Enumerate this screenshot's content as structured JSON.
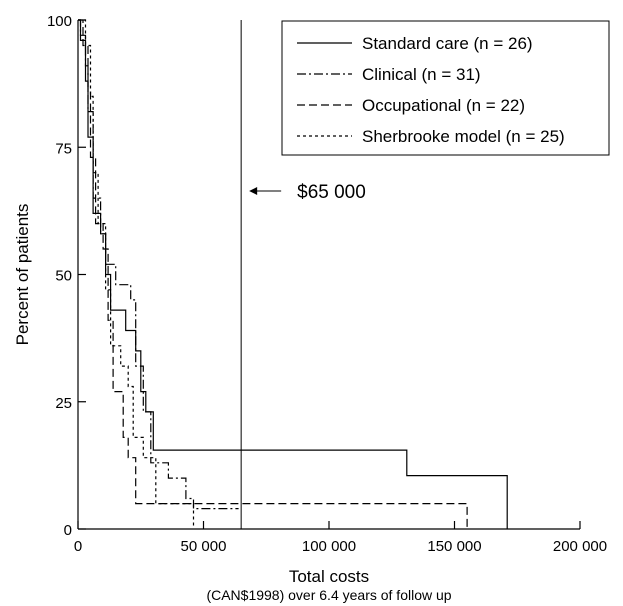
{
  "chart_data": {
    "type": "line",
    "step": true,
    "title": "",
    "xlabel": "Total costs",
    "xlabel_sub": "(CAN$1998) over 6.4 years of follow up",
    "ylabel": "Percent of patients",
    "xlim": [
      0,
      200000
    ],
    "ylim": [
      0,
      100
    ],
    "xticks": [
      0,
      50000,
      100000,
      150000,
      200000
    ],
    "xtick_labels": [
      "0",
      "50 000",
      "100 000",
      "150 000",
      "200 000"
    ],
    "yticks": [
      0,
      25,
      50,
      75,
      100
    ],
    "ytick_labels": [
      "0",
      "25",
      "50",
      "75",
      "100"
    ],
    "grid": false,
    "legend_position": "top-right",
    "series": [
      {
        "name": "Standard care (n = 26)",
        "dash": "solid",
        "points": [
          [
            0,
            100
          ],
          [
            1000,
            100
          ],
          [
            1000,
            96
          ],
          [
            3000,
            96
          ],
          [
            3000,
            88
          ],
          [
            4000,
            88
          ],
          [
            4000,
            77
          ],
          [
            6000,
            77
          ],
          [
            6000,
            62
          ],
          [
            9000,
            62
          ],
          [
            9000,
            58
          ],
          [
            11000,
            58
          ],
          [
            11000,
            50
          ],
          [
            13000,
            50
          ],
          [
            13000,
            43
          ],
          [
            19000,
            43
          ],
          [
            19000,
            39
          ],
          [
            23000,
            39
          ],
          [
            23000,
            35
          ],
          [
            25000,
            35
          ],
          [
            25000,
            27
          ],
          [
            27000,
            27
          ],
          [
            27000,
            23
          ],
          [
            30000,
            23
          ],
          [
            30000,
            15.5
          ],
          [
            131000,
            15.5
          ],
          [
            131000,
            10.5
          ],
          [
            171000,
            10.5
          ],
          [
            171000,
            0
          ]
        ]
      },
      {
        "name": "Clinical (n = 31)",
        "dash": "dashdot",
        "points": [
          [
            0,
            100
          ],
          [
            1000,
            100
          ],
          [
            1000,
            97
          ],
          [
            3000,
            97
          ],
          [
            3000,
            91
          ],
          [
            4000,
            91
          ],
          [
            4000,
            82
          ],
          [
            6000,
            82
          ],
          [
            6000,
            65
          ],
          [
            9000,
            65
          ],
          [
            9000,
            58
          ],
          [
            11000,
            58
          ],
          [
            11000,
            52
          ],
          [
            15000,
            52
          ],
          [
            15000,
            48
          ],
          [
            21000,
            48
          ],
          [
            21000,
            45
          ],
          [
            23000,
            45
          ],
          [
            23000,
            32
          ],
          [
            26000,
            32
          ],
          [
            26000,
            23
          ],
          [
            29000,
            23
          ],
          [
            29000,
            13
          ],
          [
            36000,
            13
          ],
          [
            36000,
            10
          ],
          [
            43000,
            10
          ],
          [
            43000,
            6
          ],
          [
            46000,
            6
          ],
          [
            46000,
            4
          ],
          [
            64000,
            4
          ]
        ]
      },
      {
        "name": "Occupational (n = 22)",
        "dash": "dashed",
        "points": [
          [
            0,
            100
          ],
          [
            2000,
            100
          ],
          [
            2000,
            95
          ],
          [
            4000,
            95
          ],
          [
            4000,
            86
          ],
          [
            5000,
            86
          ],
          [
            5000,
            73
          ],
          [
            7000,
            73
          ],
          [
            7000,
            60
          ],
          [
            10000,
            60
          ],
          [
            10000,
            55
          ],
          [
            12000,
            55
          ],
          [
            12000,
            41
          ],
          [
            14000,
            41
          ],
          [
            14000,
            27
          ],
          [
            18000,
            27
          ],
          [
            18000,
            18
          ],
          [
            20000,
            18
          ],
          [
            20000,
            14
          ],
          [
            23000,
            14
          ],
          [
            23000,
            5
          ],
          [
            155000,
            5
          ],
          [
            155000,
            0
          ]
        ]
      },
      {
        "name": "Sherbrooke model (n = 25)",
        "dash": "dotted",
        "points": [
          [
            0,
            100
          ],
          [
            3000,
            100
          ],
          [
            3000,
            95
          ],
          [
            5000,
            95
          ],
          [
            5000,
            85
          ],
          [
            6000,
            85
          ],
          [
            6000,
            70
          ],
          [
            8000,
            70
          ],
          [
            8000,
            60
          ],
          [
            11000,
            60
          ],
          [
            11000,
            47
          ],
          [
            13000,
            47
          ],
          [
            13000,
            36
          ],
          [
            17000,
            36
          ],
          [
            17000,
            32
          ],
          [
            20000,
            32
          ],
          [
            20000,
            28
          ],
          [
            22000,
            28
          ],
          [
            22000,
            18
          ],
          [
            26000,
            18
          ],
          [
            26000,
            14
          ],
          [
            31000,
            14
          ],
          [
            31000,
            5
          ],
          [
            46000,
            5
          ],
          [
            46000,
            0
          ]
        ]
      }
    ],
    "annotations": [
      {
        "type": "vline",
        "x": 65000,
        "label": "$65 000"
      }
    ]
  }
}
